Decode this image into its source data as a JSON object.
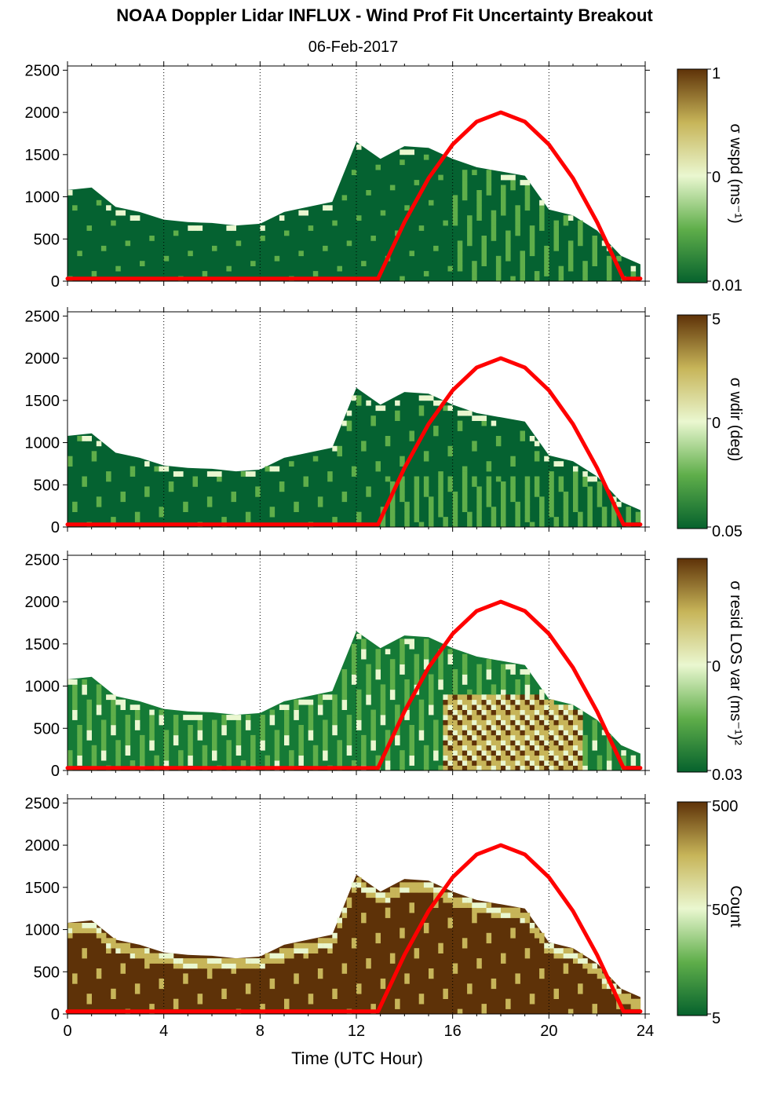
{
  "header": {
    "title": "NOAA Doppler Lidar INFLUX - Wind Prof Fit Uncertainty Breakout",
    "subtitle": "06-Feb-2017"
  },
  "chart_data": {
    "type": "heatmap",
    "x_axis": {
      "label": "Time (UTC Hour)",
      "range": [
        0,
        24
      ],
      "ticks": [
        0,
        4,
        8,
        12,
        16,
        20,
        24
      ],
      "tick_labels": [
        "0",
        "4",
        "8",
        "12",
        "16",
        "20",
        "24"
      ],
      "grid": "dotted vertical lines at 4-hour intervals"
    },
    "y_axis": {
      "range": [
        0,
        2550
      ],
      "ticks": [
        0,
        500,
        1000,
        1500,
        2000,
        2500
      ],
      "tick_labels": [
        "0",
        "500",
        "1000",
        "1500",
        "2000",
        "2500"
      ]
    },
    "overlay": {
      "color": "#ff0000",
      "shape": "arc",
      "x": [
        0,
        12.9,
        14,
        15,
        16,
        17,
        18,
        19,
        20,
        21,
        22,
        23.1,
        23.8
      ],
      "y": [
        30,
        30,
        700,
        1220,
        1620,
        1890,
        2000,
        1890,
        1620,
        1220,
        700,
        30,
        30
      ]
    },
    "data_envelope": {
      "x": [
        0,
        1,
        2,
        3,
        4,
        5,
        6,
        7,
        8,
        9,
        10,
        11,
        12,
        13,
        14,
        15,
        16,
        17,
        18,
        19,
        20,
        21,
        22,
        23,
        23.8
      ],
      "top_altitude": [
        1080,
        1110,
        880,
        820,
        730,
        700,
        690,
        660,
        680,
        820,
        880,
        940,
        1650,
        1450,
        1600,
        1580,
        1450,
        1350,
        1300,
        1250,
        850,
        780,
        600,
        300,
        200
      ]
    },
    "panels": [
      {
        "colorbar_label": "σ wspd (ms⁻¹)",
        "colorbar_ticks": [
          "1",
          "0",
          "0.01"
        ],
        "colorscale": [
          "#06622d",
          "#5fae4a",
          "#eaf7d0",
          "#c7b559",
          "#5e3208"
        ],
        "dominant_color": "#056231"
      },
      {
        "colorbar_label": "σ wdir (deg)",
        "colorbar_ticks": [
          "5",
          "0",
          "0.05"
        ],
        "colorscale": [
          "#06622d",
          "#5fae4a",
          "#eaf7d0",
          "#c7b559",
          "#5e3208"
        ],
        "dominant_color": "#056231"
      },
      {
        "colorbar_label": "σ resid LOS var (ms⁻¹)²",
        "colorbar_ticks": [
          "0",
          "0.03"
        ],
        "colorscale": [
          "#06622d",
          "#5fae4a",
          "#eaf7d0",
          "#c7b559",
          "#5e3208"
        ],
        "dominant_color": "#157a36",
        "hotspot": {
          "x_range": [
            15.5,
            21.5
          ],
          "top_altitude": 900,
          "color": "#c7b559"
        }
      },
      {
        "colorbar_label": "Count",
        "colorbar_ticks": [
          "500",
          "50",
          "5"
        ],
        "colorscale": [
          "#06622d",
          "#5fae4a",
          "#eaf7d0",
          "#c7b559",
          "#5e3208"
        ],
        "dominant_color": "#5e3208"
      }
    ]
  }
}
